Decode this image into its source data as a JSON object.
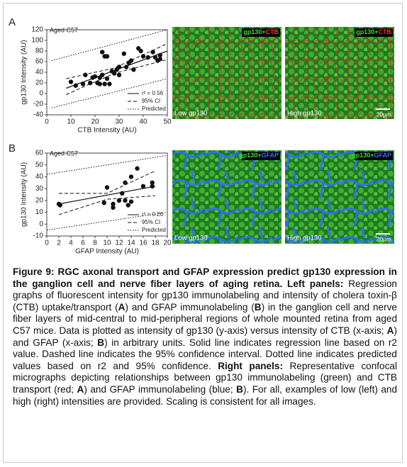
{
  "chart_data": [
    {
      "type": "scatter",
      "panel_label": "A",
      "title": "Aged C57",
      "xlabel": "CTB Intensity (AU)",
      "ylabel": "gp130 Intensity (AU)",
      "xlim": [
        0,
        50
      ],
      "xticks": [
        0,
        10,
        20,
        30,
        40,
        50
      ],
      "ylim": [
        -40,
        120
      ],
      "yticks": [
        -40,
        -20,
        0,
        20,
        40,
        60,
        80,
        100,
        120
      ],
      "color": "#111111",
      "legend": "lower right",
      "x": [
        10,
        12,
        15,
        16,
        18,
        19,
        20,
        21,
        22,
        22,
        23,
        23,
        24,
        24,
        25,
        26,
        25,
        27,
        28,
        29,
        30,
        30,
        32,
        33,
        34,
        35,
        36,
        38,
        39,
        40,
        42,
        44,
        45,
        46,
        47,
        47
      ],
      "values": [
        22,
        15,
        18,
        35,
        20,
        30,
        32,
        20,
        18,
        30,
        35,
        78,
        18,
        70,
        28,
        18,
        70,
        42,
        38,
        45,
        35,
        50,
        75,
        50,
        58,
        62,
        45,
        85,
        80,
        70,
        68,
        78,
        68,
        62,
        72,
        65
      ],
      "lines": [
        {
          "name": "r² = 0.56",
          "style": "solid",
          "curves": [
            {
              "x": [
                8,
                50
              ],
              "values": [
                10,
                80
              ]
            }
          ]
        },
        {
          "name": "95% CI",
          "style": "dashed",
          "curves": [
            {
              "x": [
                8,
                28,
                50
              ],
              "values": [
                28,
                48,
                94
              ]
            },
            {
              "x": [
                8,
                28,
                50
              ],
              "values": [
                -2,
                38,
                64
              ]
            }
          ]
        },
        {
          "name": "Predicted",
          "style": "dotted",
          "curves": [
            {
              "x": [
                2,
                50
              ],
              "values": [
                62,
                120
              ]
            },
            {
              "x": [
                2,
                50
              ],
              "values": [
                -27,
                28
              ]
            }
          ]
        }
      ]
    },
    {
      "type": "scatter",
      "panel_label": "B",
      "title": "Aged C57",
      "xlabel": "GFAP Intensity (AU)",
      "ylabel": "gp130 Intensity (AU)",
      "xlim": [
        0,
        20
      ],
      "xticks": [
        0,
        2,
        4,
        6,
        8,
        10,
        12,
        14,
        16,
        18,
        20
      ],
      "ylim": [
        -10,
        60
      ],
      "yticks": [
        -10,
        0,
        10,
        20,
        30,
        40,
        50,
        60
      ],
      "color": "#111111",
      "legend": "lower right",
      "x": [
        2,
        2.2,
        9.5,
        10,
        11,
        11,
        12,
        12.5,
        13,
        13,
        13.5,
        14,
        14,
        15,
        16,
        17.5,
        17.5
      ],
      "values": [
        17,
        16,
        18,
        31,
        14,
        17,
        20,
        26,
        35,
        20,
        16,
        19,
        40,
        47,
        32,
        32,
        35
      ],
      "lines": [
        {
          "name": "r² = 0.26",
          "style": "solid",
          "curves": [
            {
              "x": [
                2,
                18
              ],
              "values": [
                17,
                32
              ]
            }
          ]
        },
        {
          "name": "95% CI",
          "style": "dashed",
          "curves": [
            {
              "x": [
                2,
                10,
                18
              ],
              "values": [
                26,
                26,
                45
              ]
            },
            {
              "x": [
                2,
                10,
                18
              ],
              "values": [
                8,
                21,
                24
              ]
            }
          ]
        },
        {
          "name": "Predicted",
          "style": "dotted",
          "curves": [
            {
              "x": [
                0,
                20
              ],
              "values": [
                42,
                58
              ]
            },
            {
              "x": [
                0,
                20
              ],
              "values": [
                -5,
                10
              ]
            }
          ]
        }
      ]
    }
  ],
  "micrographs": [
    {
      "marker": "gp130+",
      "stain": "CTB",
      "low": "Low gp130",
      "high": "High gp130",
      "scale": "20µm"
    },
    {
      "marker": "gp130+",
      "stain": "GFAP",
      "low": "Low gp130",
      "high": "High gp130",
      "scale": "20µm"
    }
  ],
  "caption": [
    "Figure 9: RGC axonal transport and GFAP expression predict gp130 expression in the ganglion cell and nerve fiber layers of aging retina. Left panels:",
    "Regression graphs of fluorescent intensity for gp130 immunolabeling and intensity of cholera toxin-β (CTB) uptake/transport (",
    "A",
    ") and GFAP immunolabeling (",
    "B",
    ") in the ganglion cell and nerve fiber layers of mid-central to mid-peripheral regions of whole mounted retina from aged C57 mice. Data is plotted as intensity of gp130 (y-axis) versus intensity of CTB (x-axis;",
    "A",
    ") and GFAP (x-axis;",
    "B",
    ") in arbitrary units. Solid line indicates regression line based on r2 value. Dashed line indicates the 95% confidence interval. Dotted line indicates predicted values based on r2 and 95% confidence.",
    "Right panels:",
    "Representative confocal micrographs depicting relationships between gp130 immunolabeling (green) and CTB transport (red;",
    "A",
    ") and GFAP immunolabeling (blue;",
    "B",
    "). For all, examples of low (left) and high (right) intensities are provided. Scaling is consistent for all images."
  ]
}
